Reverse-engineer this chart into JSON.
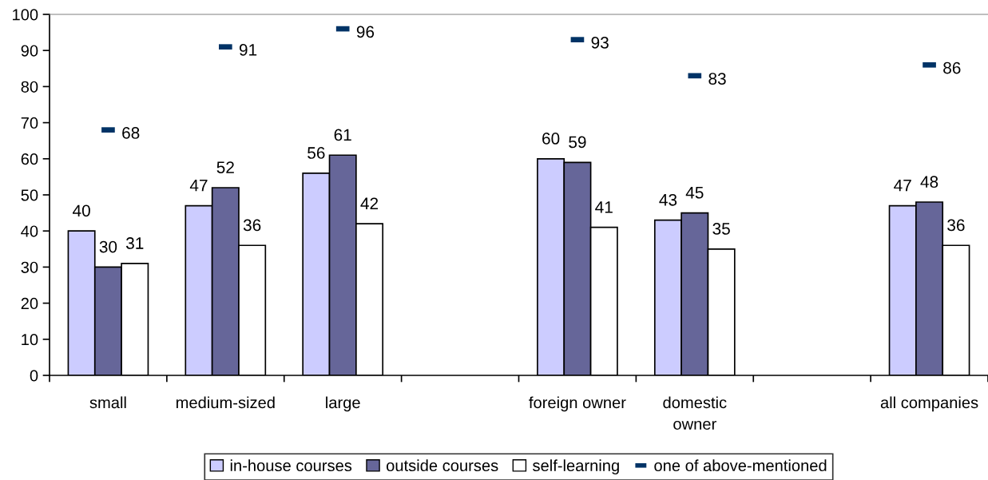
{
  "chart_data": {
    "type": "bar",
    "categories": [
      "small",
      "medium-sized",
      "large",
      null,
      "foreign owner",
      "domestic\nowner",
      null,
      "all companies"
    ],
    "series": [
      {
        "name": "in-house courses",
        "color": "#ccccff",
        "values": [
          40,
          47,
          56,
          null,
          60,
          43,
          null,
          47
        ]
      },
      {
        "name": "outside courses",
        "color": "#666699",
        "values": [
          30,
          52,
          61,
          null,
          59,
          45,
          null,
          48
        ]
      },
      {
        "name": "self-learning",
        "color": "#ffffff",
        "values": [
          31,
          36,
          42,
          null,
          41,
          35,
          null,
          36
        ]
      },
      {
        "name": "one of above-mentioned",
        "type": "scatter",
        "color": "#003366",
        "values": [
          68,
          91,
          96,
          null,
          93,
          83,
          null,
          86
        ]
      }
    ],
    "ylim": [
      0,
      100
    ],
    "yticks": [
      0,
      10,
      20,
      30,
      40,
      50,
      60,
      70,
      80,
      90,
      100
    ],
    "data_labels": true,
    "legend": "bottom"
  }
}
